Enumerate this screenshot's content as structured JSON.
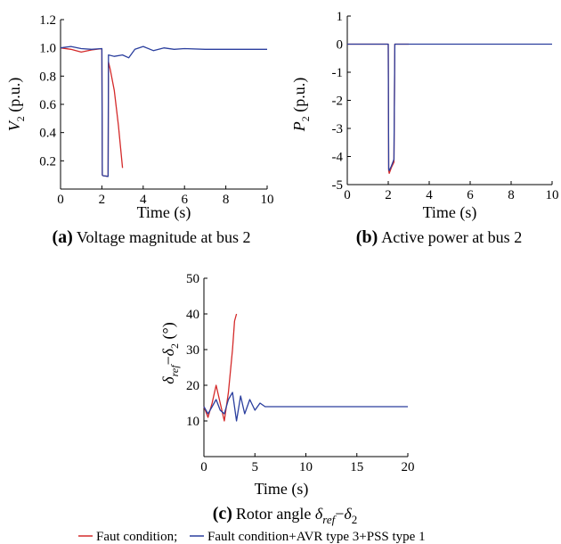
{
  "chart_data": [
    {
      "type": "line",
      "panel": "(a)",
      "caption": "Voltage magnitude at bus 2",
      "xlabel": "Time (s)",
      "ylabel_main": "V",
      "ylabel_sub": "2",
      "ylabel_unit": " (p.u.)",
      "xlim": [
        0,
        10
      ],
      "ylim": [
        0,
        1.2
      ],
      "xticks": [
        "0",
        "2",
        "4",
        "6",
        "8",
        "10"
      ],
      "yticks": [
        "0.2",
        "0.4",
        "0.6",
        "0.8",
        "1.0",
        "1.2"
      ],
      "series": [
        {
          "color": "#d42a2a",
          "x": [
            0,
            0.5,
            1.0,
            1.5,
            2.0,
            2.02,
            2.05,
            2.3,
            2.32,
            2.4,
            2.6,
            2.8,
            3.0
          ],
          "y": [
            1.0,
            0.99,
            0.97,
            0.985,
            0.995,
            0.1,
            0.095,
            0.09,
            0.9,
            0.85,
            0.7,
            0.45,
            0.15
          ]
        },
        {
          "color": "#2b3f9e",
          "x": [
            0,
            0.5,
            1.0,
            1.5,
            2.0,
            2.02,
            2.05,
            2.3,
            2.32,
            2.6,
            3.0,
            3.3,
            3.6,
            4.0,
            4.5,
            5.0,
            5.5,
            6.0,
            7.0,
            8.0,
            9.0,
            10.0
          ],
          "y": [
            1.0,
            1.01,
            0.995,
            0.99,
            0.995,
            0.1,
            0.095,
            0.09,
            0.95,
            0.94,
            0.95,
            0.93,
            0.99,
            1.01,
            0.98,
            1.0,
            0.99,
            0.995,
            0.99,
            0.99,
            0.99,
            0.99
          ]
        }
      ]
    },
    {
      "type": "line",
      "panel": "(b)",
      "caption": "Active power at bus 2",
      "xlabel": "Time (s)",
      "ylabel_main": "P",
      "ylabel_sub": "2",
      "ylabel_unit": " (p.u.)",
      "xlim": [
        0,
        10
      ],
      "ylim": [
        -5,
        1
      ],
      "xticks": [
        "0",
        "2",
        "4",
        "6",
        "8",
        "10"
      ],
      "yticks": [
        "-5",
        "-4",
        "-3",
        "-2",
        "-1",
        "0",
        "1"
      ],
      "series": [
        {
          "color": "#d42a2a",
          "x": [
            0,
            2.0,
            2.02,
            2.05,
            2.15,
            2.28,
            2.32,
            3.0
          ],
          "y": [
            0,
            0,
            -4.5,
            -4.6,
            -4.4,
            -4.2,
            0,
            0
          ]
        },
        {
          "color": "#2b3f9e",
          "x": [
            0,
            2.0,
            2.02,
            2.05,
            2.15,
            2.28,
            2.32,
            3.0,
            10.0
          ],
          "y": [
            0,
            0,
            -4.45,
            -4.5,
            -4.35,
            -4.1,
            0,
            0,
            0
          ]
        }
      ]
    },
    {
      "type": "line",
      "panel": "(c)",
      "caption_text": "Rotor angle ",
      "caption_sym1": "δ",
      "caption_sub1": "ref",
      "caption_minus": "−",
      "caption_sym2": "δ",
      "caption_sub2": "2",
      "xlabel": "Time (s)",
      "ylabel_sym1": "δ",
      "ylabel_sub1": "ref",
      "ylabel_minus": "−",
      "ylabel_sym2": "δ",
      "ylabel_sub2": "2",
      "ylabel_unit": " (°)",
      "xlim": [
        0,
        20
      ],
      "ylim": [
        0,
        50
      ],
      "xticks": [
        "0",
        "5",
        "10",
        "15",
        "20"
      ],
      "yticks": [
        "10",
        "20",
        "30",
        "40",
        "50"
      ],
      "series": [
        {
          "color": "#d42a2a",
          "x": [
            0,
            0.4,
            0.8,
            1.2,
            1.6,
            2.0,
            2.4,
            2.8,
            3.0,
            3.2
          ],
          "y": [
            14,
            11,
            15,
            20,
            15,
            10,
            18,
            30,
            38,
            40
          ]
        },
        {
          "color": "#2b3f9e",
          "x": [
            0,
            0.4,
            0.8,
            1.2,
            1.6,
            2.0,
            2.4,
            2.8,
            3.2,
            3.6,
            4.0,
            4.5,
            5.0,
            5.5,
            6.0,
            7.0,
            8.0,
            10.0,
            15.0,
            20.0
          ],
          "y": [
            14,
            12,
            14,
            16,
            13,
            12,
            16,
            18,
            10,
            17,
            12,
            16,
            13,
            15,
            14,
            14,
            14,
            14,
            14,
            14
          ]
        }
      ]
    }
  ],
  "legend": {
    "items": [
      {
        "label": "Faut condition;",
        "color": "#d42a2a"
      },
      {
        "label": "Fault condition+AVR type 3+PSS type 1",
        "color": "#2b3f9e"
      }
    ]
  }
}
